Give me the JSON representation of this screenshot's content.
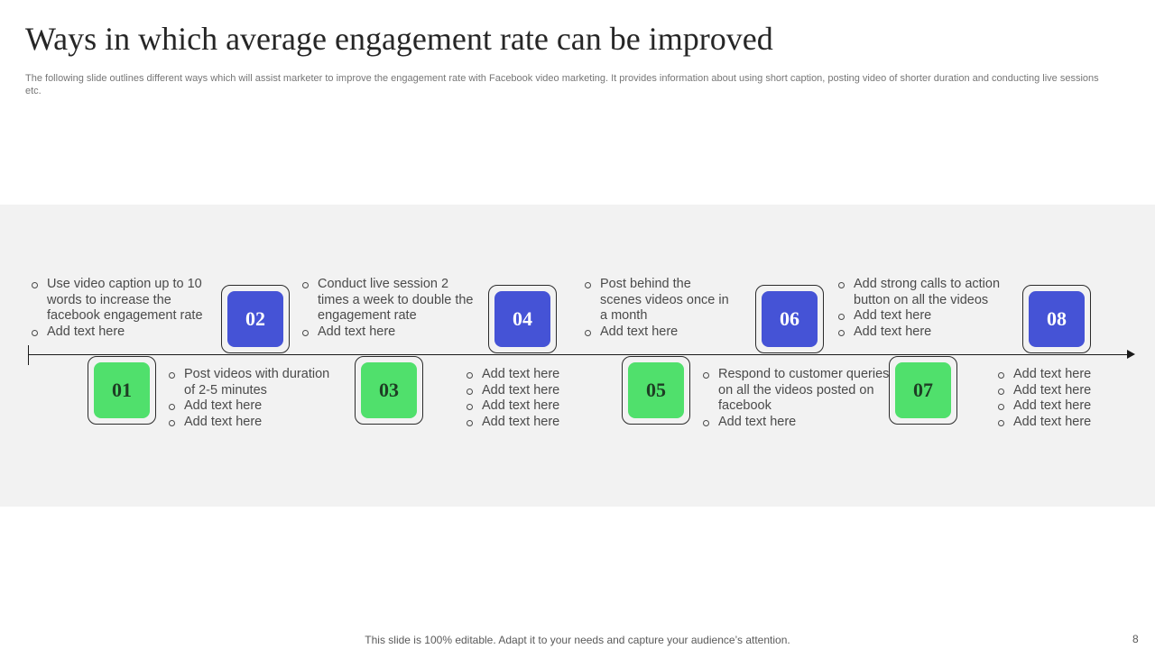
{
  "slide": {
    "title": "Ways in which average engagement rate can be improved",
    "subtitle": "The following slide outlines different ways which will assist marketer to improve the engagement rate with Facebook video marketing. It provides information about using short caption, posting video of shorter duration and conducting live sessions etc.",
    "footer": "This slide is 100% editable. Adapt it to your needs and capture your audience’s attention.",
    "page_number": "8"
  },
  "colors": {
    "blue": "#4553d6",
    "green": "#50e06c",
    "band": "#f2f2f2"
  },
  "steps": [
    {
      "number": "01",
      "bullets": [
        "Post videos with duration of 2-5 minutes",
        "Add text here",
        "Add text here"
      ]
    },
    {
      "number": "02",
      "bullets": [
        "Conduct live session 2 times a week to double the engagement rate",
        "Add text here"
      ]
    },
    {
      "number": "03",
      "bullets": [
        "Add text here",
        "Add text here",
        "Add text here",
        "Add text here"
      ]
    },
    {
      "number": "04",
      "bullets": [
        "Post behind the scenes videos once in a month",
        "Add text here"
      ]
    },
    {
      "number": "05",
      "bullets": [
        "Respond to customer queries on all the videos posted on facebook",
        "Add text here"
      ]
    },
    {
      "number": "06",
      "bullets": [
        "Add strong calls to action button on all the videos",
        "Add text here",
        "Add text here"
      ]
    },
    {
      "number": "07",
      "bullets": [
        "Add text here",
        "Add text here",
        "Add text here",
        "Add text here"
      ]
    },
    {
      "number": "08",
      "bullets": []
    }
  ],
  "intro_bullets": [
    "Use video caption up to 10 words to increase the facebook engagement rate",
    "Add text here"
  ]
}
